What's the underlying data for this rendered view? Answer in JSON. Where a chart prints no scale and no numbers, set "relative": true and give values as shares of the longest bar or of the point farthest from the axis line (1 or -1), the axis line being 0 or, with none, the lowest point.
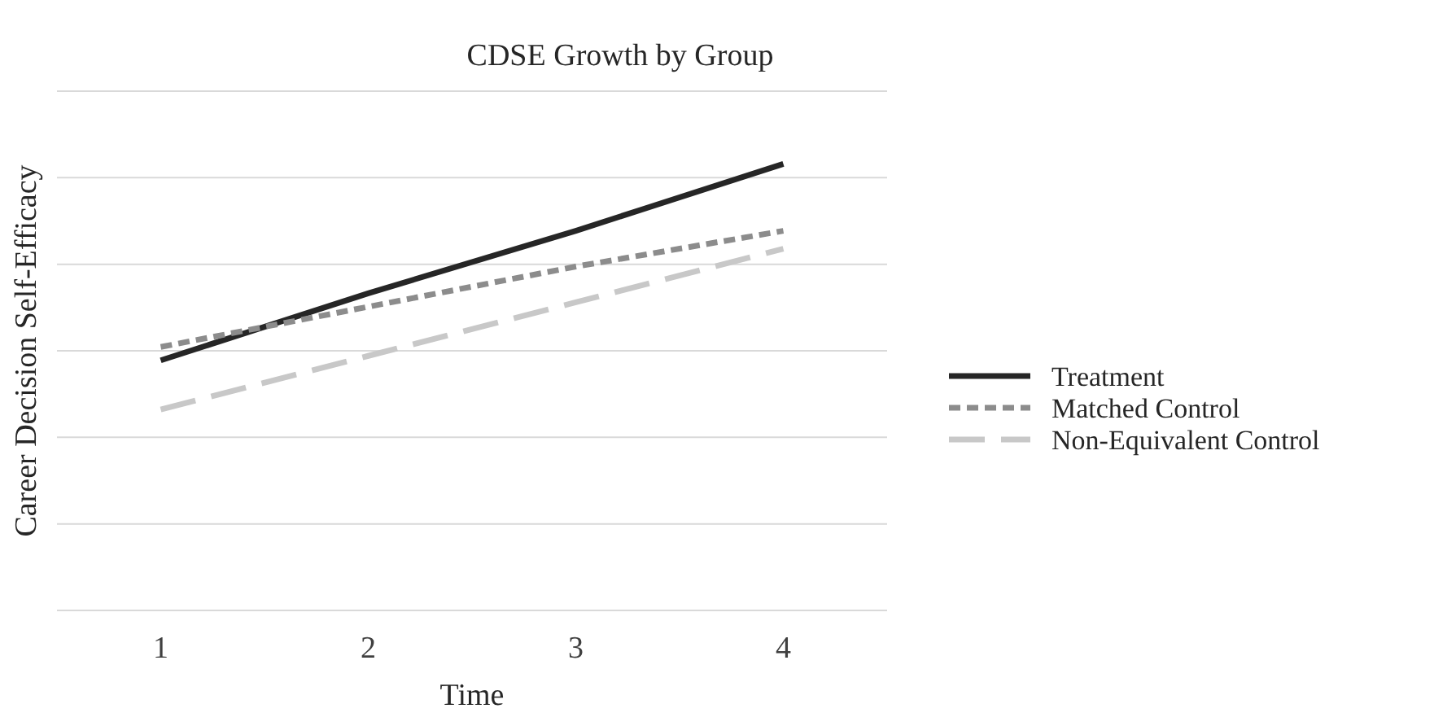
{
  "chart_data": {
    "type": "line",
    "title": "CDSE Growth by Group",
    "xlabel": "Time",
    "ylabel": "Career Decision Self-Efficacy",
    "x": [
      1,
      2,
      3,
      4
    ],
    "xlim": [
      0.5,
      4.5
    ],
    "xticks": [
      1,
      2,
      3,
      4
    ],
    "relative": true,
    "grid": "y",
    "legend": "right",
    "series": [
      {
        "name": "Treatment",
        "color": "#262626",
        "line_style": "solid",
        "values": [
          0.56,
          0.71,
          0.85,
          1.0
        ]
      },
      {
        "name": "Matched Control",
        "color": "#8c8c8c",
        "line_style": "dashed",
        "values": [
          0.59,
          0.68,
          0.77,
          0.85
        ]
      },
      {
        "name": "Non-Equivalent Control",
        "color": "#c8c8c8",
        "line_style": "longdash",
        "values": [
          0.45,
          0.57,
          0.69,
          0.81
        ]
      }
    ]
  }
}
